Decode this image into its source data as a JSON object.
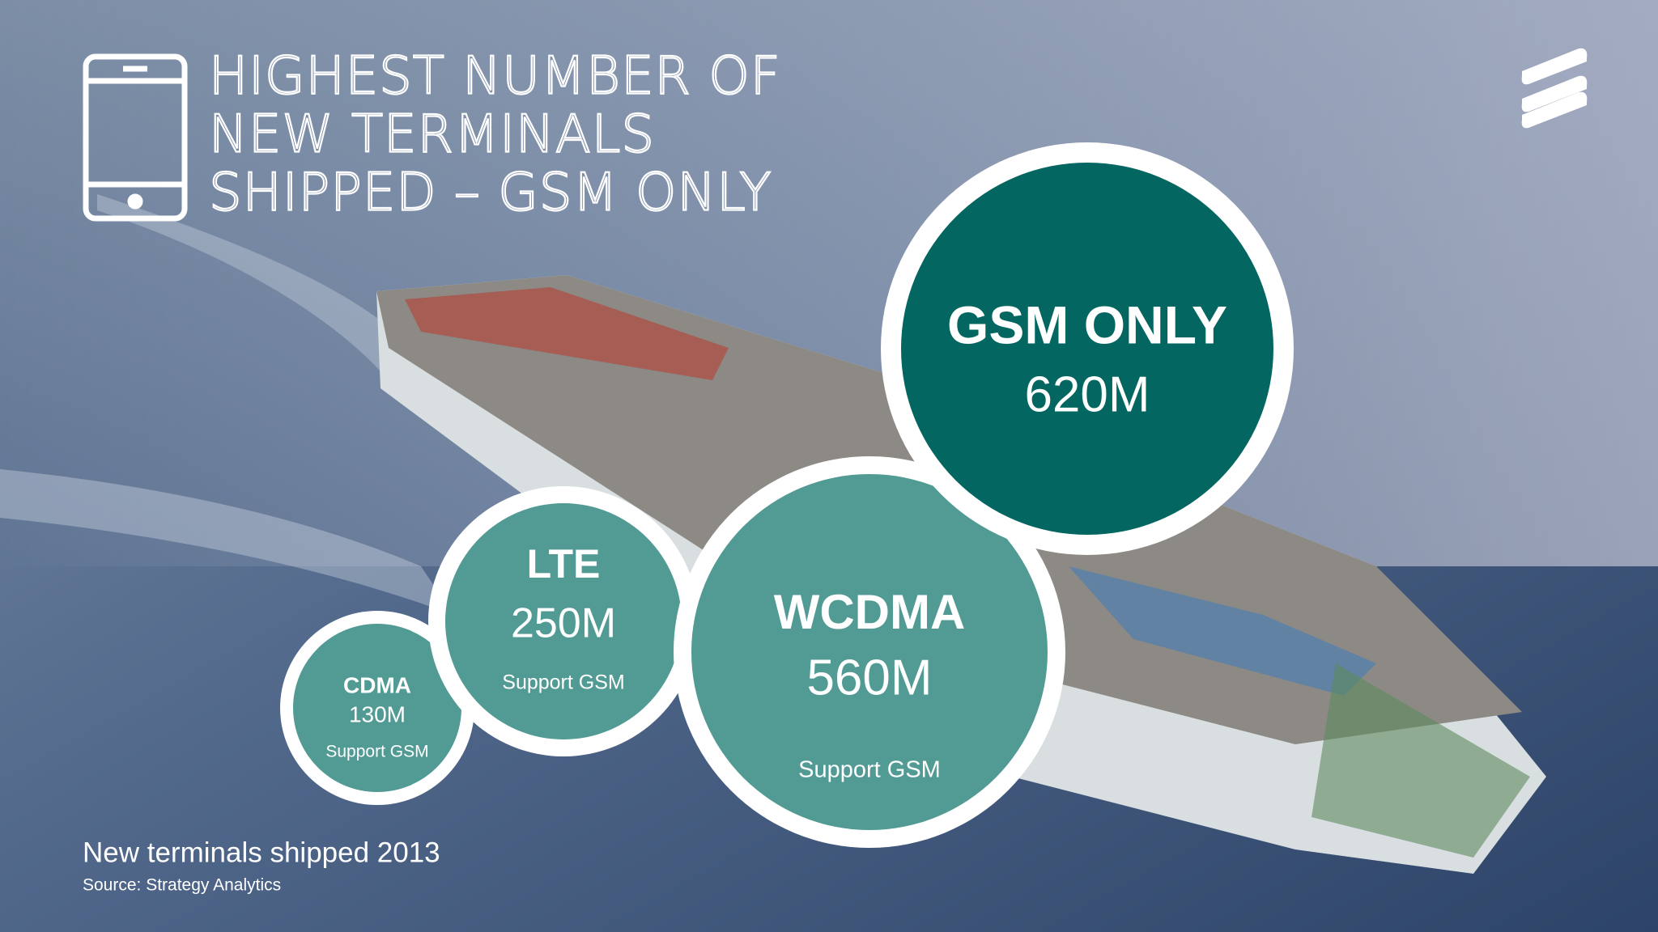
{
  "title": {
    "lines": [
      "HIGHEST NUMBER OF",
      "NEW TERMINALS",
      "SHIPPED – GSM ONLY"
    ]
  },
  "bubbles": [
    {
      "label": "GSM ONLY",
      "value": "620M"
    },
    {
      "label": "WCDMA",
      "value": "560M",
      "note": "Support GSM"
    },
    {
      "label": "LTE",
      "value": "250M",
      "note": "Support GSM"
    },
    {
      "label": "CDMA",
      "value": "130M",
      "note": "Support GSM"
    }
  ],
  "footer": {
    "caption": "New terminals shipped 2013",
    "source": "Source: Strategy Analytics"
  }
}
